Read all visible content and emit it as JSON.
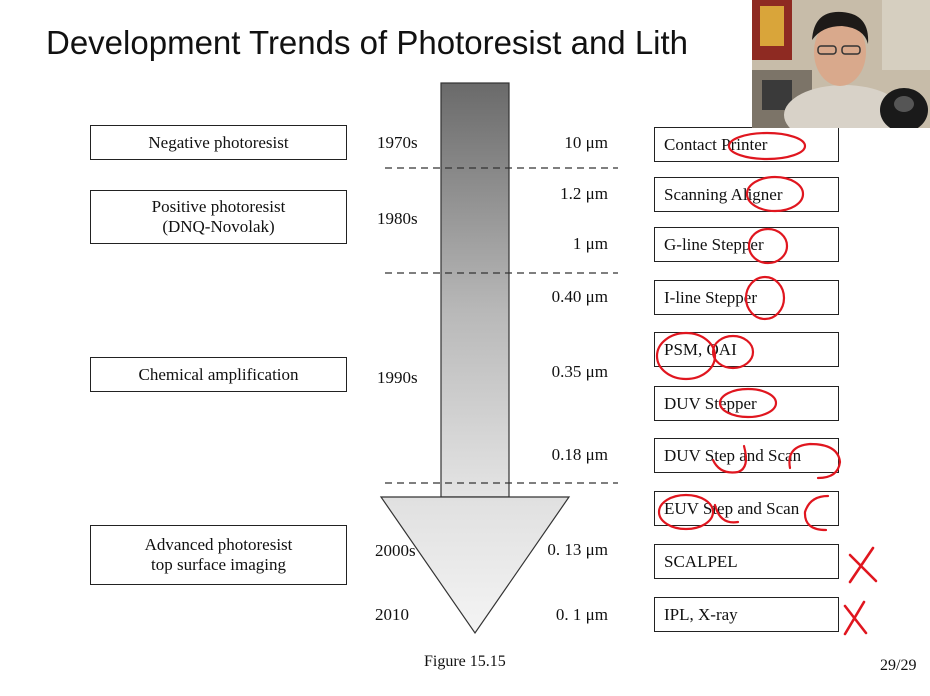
{
  "slide": {
    "title": "Development Trends of Photoresist and Lith",
    "caption": "Figure 15.15",
    "page": "29/29"
  },
  "resists": [
    {
      "lines": [
        "Negative photoresist"
      ]
    },
    {
      "lines": [
        "Positive photoresist",
        "(DNQ-Novolak)"
      ]
    },
    {
      "lines": [
        "Chemical amplification"
      ]
    },
    {
      "lines": [
        "Advanced photoresist",
        "top surface imaging"
      ]
    }
  ],
  "decades": [
    "1970s",
    "1980s",
    "1990s",
    "2000s",
    "2010"
  ],
  "feature_sizes": [
    "10 μm",
    "1.2 μm",
    "1 μm",
    "0.40 μm",
    "0.35 μm",
    "0.18 μm",
    "0. 13 μm",
    "0. 1 μm"
  ],
  "tools": [
    "Contact Printer",
    "Scanning Aligner",
    "G-line Stepper",
    "I-line Stepper",
    "PSM, OAI",
    "DUV Stepper",
    "DUV Step and Scan",
    "EUV Step and Scan",
    "SCALPEL",
    "IPL, X-ray"
  ],
  "annotation_color": "#e0161f",
  "webcam": {
    "description": "presenter webcam overlay"
  }
}
